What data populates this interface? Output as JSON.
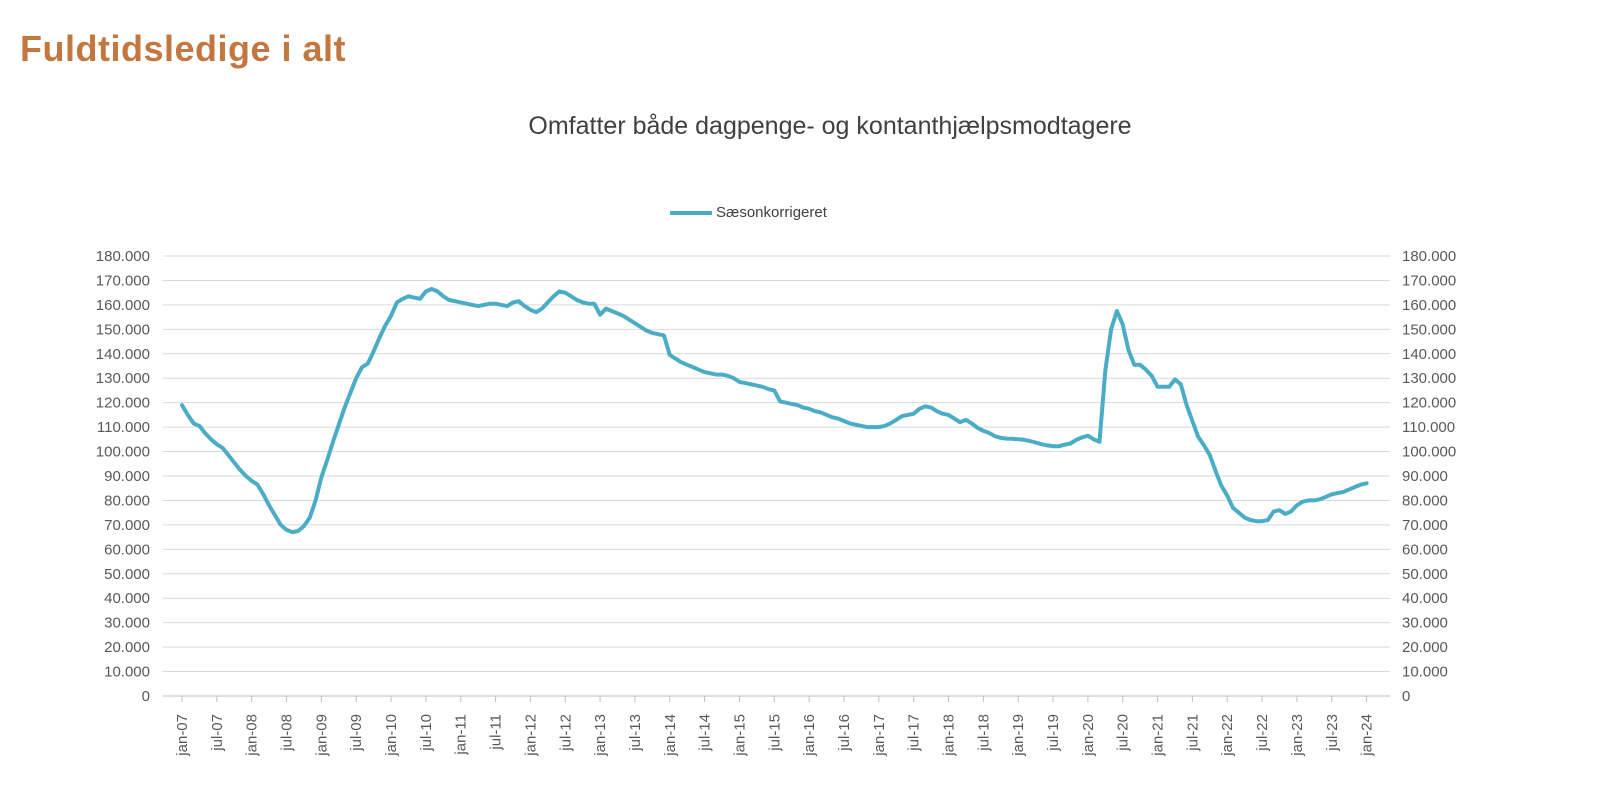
{
  "page": {
    "title": "Fuldtidsledige i alt",
    "subtitle": "Omfatter både dagpenge- og kontanthjælpsmodtagere"
  },
  "legend": {
    "series_label": "Sæsonkorrigeret"
  },
  "colors": {
    "title": "#C4763F",
    "subtitle": "#404040",
    "line": "#4BACC6",
    "gridline": "#D9D9D9",
    "axis_line": "#BFBFBF",
    "tick_label": "#595959"
  },
  "chart_data": {
    "type": "line",
    "title": "Omfatter både dagpenge- og kontanthjælpsmodtagere",
    "legend_entries": [
      "Sæsonkorrigeret"
    ],
    "legend_position": "top-center",
    "grid": "horizontal",
    "frequency": "monthly",
    "x_start": "jan-07",
    "x_end": "jan-24",
    "ylim": [
      0,
      180000
    ],
    "y_tick_step": 10000,
    "y_tick_labels": [
      "0",
      "10.000",
      "20.000",
      "30.000",
      "40.000",
      "50.000",
      "60.000",
      "70.000",
      "80.000",
      "90.000",
      "100.000",
      "110.000",
      "120.000",
      "130.000",
      "140.000",
      "150.000",
      "160.000",
      "170.000",
      "180.000"
    ],
    "x_tick_labels": [
      "jan-07",
      "jul-07",
      "jan-08",
      "jul-08",
      "jan-09",
      "jul-09",
      "jan-10",
      "jul-10",
      "jan-11",
      "jul-11",
      "jan-12",
      "jul-12",
      "jan-13",
      "jul-13",
      "jan-14",
      "jul-14",
      "jan-15",
      "jul-15",
      "jan-16",
      "jul-16",
      "jan-17",
      "jul-17",
      "jan-18",
      "jul-18",
      "jan-19",
      "jul-19",
      "jan-20",
      "jul-20",
      "jan-21",
      "jul-21",
      "jan-22",
      "jul-22",
      "jan-23",
      "jul-23",
      "jan-24"
    ],
    "series": [
      {
        "name": "Sæsonkorrigeret",
        "values": [
          119000,
          115000,
          111500,
          110500,
          107500,
          105000,
          103000,
          101500,
          98500,
          95500,
          92500,
          90000,
          88000,
          86500,
          82500,
          78000,
          74000,
          70000,
          68000,
          67000,
          67500,
          69500,
          73000,
          80000,
          89500,
          96500,
          104000,
          111000,
          118000,
          124000,
          130000,
          134500,
          136000,
          141000,
          146500,
          151500,
          155500,
          161000,
          162500,
          163500,
          163000,
          162500,
          165500,
          166500,
          165500,
          163500,
          162000,
          161500,
          161000,
          160500,
          160000,
          159500,
          160000,
          160500,
          160500,
          160000,
          159500,
          161000,
          161500,
          159500,
          158000,
          157000,
          158500,
          161000,
          163500,
          165500,
          165000,
          163500,
          162000,
          161000,
          160500,
          160500,
          156000,
          158500,
          157500,
          156500,
          155500,
          154000,
          152500,
          151000,
          149500,
          148500,
          148000,
          147500,
          139500,
          138000,
          136500,
          135500,
          134500,
          133500,
          132500,
          132000,
          131500,
          131500,
          131000,
          130000,
          128500,
          128000,
          127500,
          127000,
          126500,
          125500,
          125000,
          120500,
          120000,
          119500,
          119000,
          118000,
          117500,
          116500,
          116000,
          115000,
          114000,
          113500,
          112500,
          111500,
          111000,
          110500,
          110000,
          110000,
          110000,
          110500,
          111500,
          113000,
          114500,
          115000,
          115500,
          117500,
          118500,
          118000,
          116500,
          115500,
          115000,
          113500,
          112000,
          113000,
          111500,
          109700,
          108500,
          107600,
          106300,
          105600,
          105300,
          105200,
          105000,
          104800,
          104300,
          103700,
          103000,
          102500,
          102200,
          102200,
          102800,
          103300,
          104800,
          105800,
          106500,
          105000,
          104000,
          133000,
          150000,
          157500,
          152000,
          141500,
          135500,
          135500,
          133500,
          131000,
          126500,
          126500,
          126500,
          129500,
          127500,
          119000,
          112500,
          106000,
          102500,
          98500,
          92000,
          86000,
          82000,
          77000,
          75000,
          73000,
          72000,
          71500,
          71500,
          72000,
          75500,
          76000,
          74500,
          75500,
          78000,
          79500,
          80000,
          80000,
          80500,
          81500,
          82500,
          83000,
          83500,
          84500,
          85500,
          86500,
          87000
        ]
      }
    ]
  }
}
